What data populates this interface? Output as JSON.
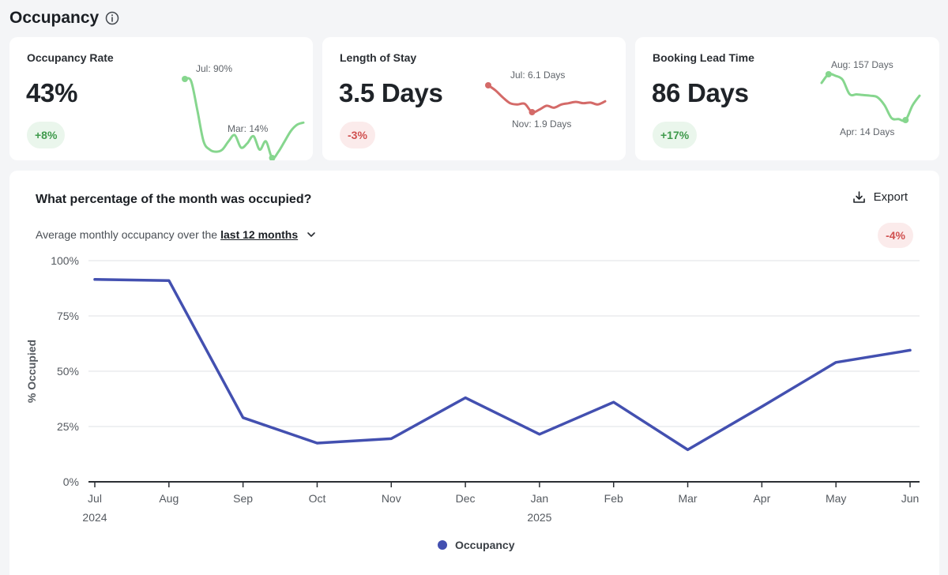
{
  "header": {
    "title": "Occupancy"
  },
  "metrics": [
    {
      "label": "Occupancy Rate",
      "value": "43%",
      "change": "+8%",
      "direction": "up",
      "sparkline": {
        "color": "#86d68e",
        "values": [
          90,
          88,
          60,
          30,
          22,
          20,
          22,
          30,
          36,
          24,
          28,
          35,
          22,
          30,
          14,
          20,
          30,
          40,
          46,
          48
        ],
        "high_label": "Jul: 90%",
        "low_label": "Mar: 14%",
        "high_index": 0,
        "low_index": 14
      }
    },
    {
      "label": "Length of Stay",
      "value": "3.5 Days",
      "change": "-3%",
      "direction": "down",
      "sparkline": {
        "color": "#d46a68",
        "values": [
          6.1,
          5.3,
          4.2,
          3.3,
          3.1,
          3.2,
          1.9,
          2.3,
          2.9,
          2.6,
          3.1,
          3.3,
          3.5,
          3.3,
          3.4,
          3.1,
          3.6
        ],
        "high_label": "Jul: 6.1 Days",
        "low_label": "Nov: 1.9 Days",
        "high_index": 0,
        "low_index": 6
      }
    },
    {
      "label": "Booking Lead Time",
      "value": "86 Days",
      "change": "+17%",
      "direction": "up",
      "sparkline": {
        "color": "#86d68e",
        "values": [
          130,
          157,
          152,
          140,
          95,
          94,
          92,
          90,
          85,
          60,
          20,
          17,
          14,
          60,
          90
        ],
        "high_label": "Aug: 157 Days",
        "low_label": "Apr: 14 Days",
        "high_index": 1,
        "low_index": 12
      }
    }
  ],
  "chart": {
    "title": "What percentage of the month was occupied?",
    "subtitle_prefix": "Average monthly occupancy over the",
    "range_label": "last 12 months",
    "export_label": "Export",
    "change": "-4%"
  },
  "chart_data": {
    "type": "line",
    "categories": [
      "Jul",
      "Aug",
      "Sep",
      "Oct",
      "Nov",
      "Dec",
      "Jan",
      "Feb",
      "Mar",
      "Apr",
      "May",
      "Jun"
    ],
    "year_labels": [
      {
        "index": 0,
        "label": "2024"
      },
      {
        "index": 6,
        "label": "2025"
      }
    ],
    "series": [
      {
        "name": "Occupancy",
        "color": "#4350b0",
        "values": [
          91.5,
          91,
          29,
          17.5,
          19.5,
          38,
          21.5,
          36,
          14.5,
          34,
          54,
          59.5
        ]
      }
    ],
    "ylabel": "% Occupied",
    "xlabel": "",
    "ylim": [
      0,
      100
    ],
    "yticks": [
      0,
      25,
      50,
      75,
      100
    ],
    "ytick_labels": [
      "0%",
      "25%",
      "50%",
      "75%",
      "100%"
    ],
    "grid": true,
    "legend": "bottom-center"
  }
}
